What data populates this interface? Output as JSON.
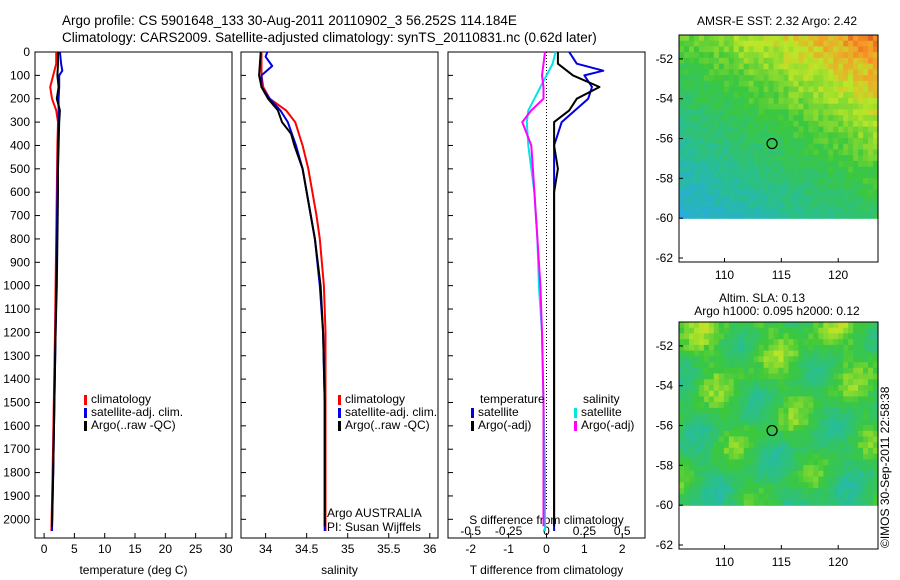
{
  "header": {
    "line1": "Argo profile: CS 5901648_133 30-Aug-2011 20110902_3 56.252S 114.184E",
    "line2": "Climatology: CARS2009. Satellite-adjusted climatology: synTS_20110831.nc (0.62d later)"
  },
  "colors": {
    "climatology": "#ff0000",
    "satellite": "#0000e0",
    "argo": "#000000",
    "salinity_satellite": "#00e5e5",
    "salinity_argo": "#ff00ff"
  },
  "chart_data": [
    {
      "type": "line",
      "panel": "temperature",
      "xlabel": "temperature (deg C)",
      "ylabel": "",
      "xlim": [
        -1.5,
        31
      ],
      "ylim": [
        2080,
        0
      ],
      "xticks": [
        "0",
        "5",
        "10",
        "15",
        "20",
        "25",
        "30"
      ],
      "yticks": [
        "0",
        "100",
        "200",
        "300",
        "400",
        "500",
        "600",
        "700",
        "800",
        "900",
        "1000",
        "1100",
        "1200",
        "1300",
        "1400",
        "1500",
        "1600",
        "1700",
        "1800",
        "1900",
        "2000"
      ],
      "legend": [
        "climatology",
        "satellite-adj. clim.",
        "Argo(..raw -QC)"
      ],
      "legend_position": "center",
      "series": [
        {
          "name": "climatology",
          "depth": [
            0,
            50,
            100,
            150,
            200,
            250,
            300,
            400,
            600,
            800,
            1000,
            1200,
            1500,
            1800,
            2050
          ],
          "values": [
            2.0,
            2.0,
            1.5,
            1.0,
            1.3,
            2.0,
            2.3,
            2.2,
            2.1,
            2.0,
            1.9,
            1.8,
            1.6,
            1.4,
            1.2
          ]
        },
        {
          "name": "satellite-adj. clim.",
          "depth": [
            0,
            50,
            80,
            100,
            150,
            200,
            300,
            400,
            600,
            800,
            1000,
            1200,
            1500,
            1800,
            2050
          ],
          "values": [
            2.6,
            2.8,
            3.0,
            2.5,
            2.5,
            2.4,
            2.4,
            2.3,
            2.2,
            2.1,
            2.0,
            1.9,
            1.7,
            1.5,
            1.3
          ]
        },
        {
          "name": "Argo(..raw -QC)",
          "depth": [
            0,
            50,
            100,
            150,
            200,
            250,
            300,
            400,
            500,
            600,
            800,
            1000,
            1200,
            1500,
            1800,
            2030
          ],
          "values": [
            2.3,
            2.3,
            2.2,
            2.4,
            2.1,
            2.6,
            2.5,
            2.4,
            2.3,
            2.3,
            2.2,
            2.1,
            1.9,
            1.7,
            1.5,
            1.3
          ]
        }
      ]
    },
    {
      "type": "line",
      "panel": "salinity",
      "xlabel": "salinity",
      "xlim": [
        33.7,
        36.1
      ],
      "ylim": [
        2080,
        0
      ],
      "xticks": [
        "34",
        "34.5",
        "35",
        "35.5",
        "36"
      ],
      "legend": [
        "climatology",
        "satellite-adj. clim.",
        "Argo(..raw -QC)"
      ],
      "annotations": [
        "Argo AUSTRALIA",
        "PI: Susan Wijffels"
      ],
      "series": [
        {
          "name": "climatology",
          "depth": [
            0,
            100,
            150,
            200,
            250,
            300,
            400,
            500,
            600,
            700,
            800,
            1000,
            1200,
            1500,
            1800,
            2050
          ],
          "values": [
            33.95,
            33.95,
            33.97,
            34.05,
            34.25,
            34.36,
            34.45,
            34.52,
            34.57,
            34.62,
            34.66,
            34.71,
            34.73,
            34.73,
            34.73,
            34.73
          ]
        },
        {
          "name": "satellite-adj. clim.",
          "depth": [
            0,
            20,
            60,
            100,
            150,
            200,
            250,
            300,
            400,
            500,
            600,
            700,
            800,
            1000,
            1200,
            1500,
            1800,
            2050
          ],
          "values": [
            34.02,
            34.0,
            34.08,
            33.95,
            33.95,
            34.05,
            34.18,
            34.27,
            34.37,
            34.45,
            34.5,
            34.55,
            34.6,
            34.66,
            34.7,
            34.72,
            34.72,
            34.72
          ]
        },
        {
          "name": "Argo(..raw -QC)",
          "depth": [
            0,
            100,
            150,
            200,
            250,
            300,
            350,
            400,
            500,
            600,
            700,
            800,
            1000,
            1200,
            1500,
            1800,
            2030
          ],
          "values": [
            33.94,
            33.92,
            33.95,
            34.03,
            34.15,
            34.2,
            34.31,
            34.35,
            34.45,
            34.5,
            34.55,
            34.6,
            34.67,
            34.7,
            34.72,
            34.72,
            34.72
          ]
        }
      ]
    },
    {
      "type": "line",
      "panel": "differences",
      "xlabel": "T difference from climatology",
      "xlabel_top": "S difference from climatology",
      "xlim": [
        -2.6,
        2.6
      ],
      "ylim": [
        2080,
        0
      ],
      "xticks_bottom": [
        "-2",
        "-1",
        "0",
        "1",
        "2"
      ],
      "xticks_top": [
        "-0.5",
        "-0.25",
        "0",
        "0.25",
        "0.5"
      ],
      "legend_groups": [
        "temperature",
        "salinity"
      ],
      "legend": [
        "satellite",
        "Argo(-adj)",
        "satellite",
        "Argo(-adj)"
      ],
      "series": [
        {
          "name": "temperature satellite",
          "depth": [
            0,
            50,
            80,
            100,
            150,
            200,
            300,
            400,
            600,
            800,
            1000,
            1200,
            1500,
            1800,
            2050
          ],
          "values": [
            0.6,
            0.8,
            1.5,
            1.0,
            1.2,
            1.1,
            0.4,
            0.2,
            0.2,
            0.2,
            0.2,
            0.2,
            0.2,
            0.2,
            0.2
          ]
        },
        {
          "name": "temperature Argo(-adj)",
          "depth": [
            0,
            50,
            100,
            150,
            200,
            250,
            300,
            400,
            500,
            600,
            800,
            1000,
            1200,
            1500,
            1800,
            2030
          ],
          "values": [
            0.3,
            0.3,
            0.7,
            1.4,
            0.8,
            0.6,
            0.2,
            0.2,
            0.3,
            0.2,
            0.2,
            0.2,
            0.2,
            0.2,
            0.2,
            0.2
          ]
        },
        {
          "name": "salinity satellite",
          "depth": [
            0,
            50,
            100,
            150,
            200,
            250,
            300,
            400,
            500,
            600,
            800,
            1000,
            1200,
            1500,
            1800,
            2050
          ],
          "values": [
            0.06,
            0.04,
            0.0,
            -0.04,
            -0.08,
            -0.12,
            -0.13,
            -0.12,
            -0.1,
            -0.08,
            -0.06,
            -0.05,
            -0.03,
            -0.02,
            -0.01,
            -0.01
          ]
        },
        {
          "name": "salinity Argo(-adj)",
          "depth": [
            0,
            50,
            100,
            150,
            200,
            250,
            300,
            400,
            500,
            600,
            700,
            800,
            1000,
            1200,
            1500,
            1800,
            2030
          ],
          "values": [
            -0.01,
            -0.02,
            -0.03,
            -0.02,
            -0.02,
            -0.1,
            -0.16,
            -0.1,
            -0.09,
            -0.08,
            -0.07,
            -0.06,
            -0.04,
            -0.03,
            -0.02,
            -0.02,
            -0.02
          ]
        }
      ]
    },
    {
      "type": "heatmap",
      "panel": "sst-map",
      "title": "AMSR-E SST: 2.32 Argo: 2.42",
      "xlim": [
        106,
        123.5
      ],
      "ylim": [
        -62.2,
        -50.8
      ],
      "xticks": [
        "110",
        "115",
        "120"
      ],
      "yticks": [
        "-52",
        "-54",
        "-56",
        "-58",
        "-60",
        "-62"
      ],
      "data_ylim": [
        -60,
        -50.8
      ],
      "marker": {
        "lon": 114.184,
        "lat": -56.252
      }
    },
    {
      "type": "heatmap",
      "panel": "sla-map",
      "title": "Altim. SLA: 0.13",
      "subtitle": "Argo h1000: 0.095 h2000: 0.12",
      "xlim": [
        106,
        123.5
      ],
      "ylim": [
        -62.2,
        -50.8
      ],
      "xticks": [
        "110",
        "115",
        "120"
      ],
      "yticks": [
        "-52",
        "-54",
        "-56",
        "-58",
        "-60",
        "-62"
      ],
      "data_ylim": [
        -60,
        -50.8
      ],
      "marker": {
        "lon": 114.184,
        "lat": -56.252
      }
    }
  ],
  "credit": "©IMOS 30-Sep-2011 22:58:38"
}
